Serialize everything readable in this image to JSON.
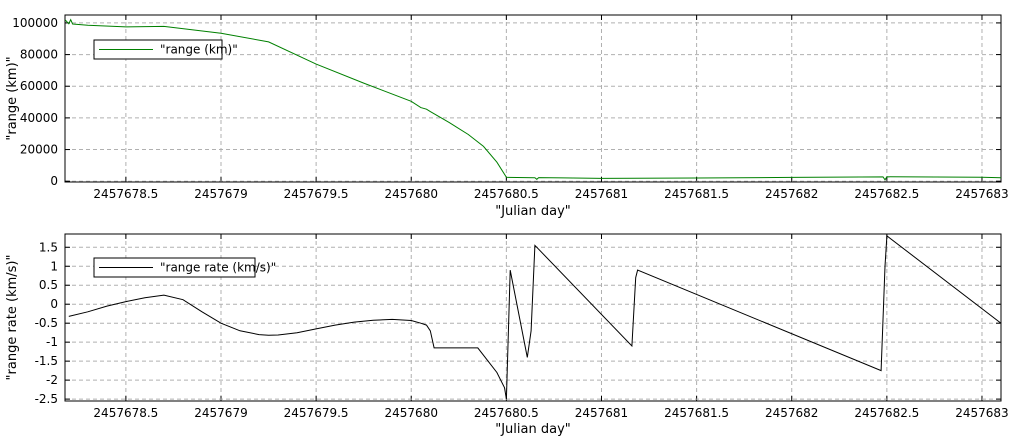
{
  "chart_data": [
    {
      "type": "line",
      "title": "",
      "xlabel": "\"Julian day\"",
      "ylabel": "\"range (km)\"",
      "xlim": [
        2457678.18,
        2457683.1
      ],
      "ylim": [
        -500,
        105000
      ],
      "grid": true,
      "legend_position": "top-left",
      "x_ticks": [
        "2457678.5",
        "2457679",
        "2457679.5",
        "2457680",
        "2457680.5",
        "2457681",
        "2457681.5",
        "2457682",
        "2457682.5",
        "2457683"
      ],
      "y_ticks": [
        "0",
        "20000",
        "40000",
        "60000",
        "80000",
        "100000"
      ],
      "series": [
        {
          "name": "\"range (km)\"",
          "color": "#008000",
          "x": [
            2457678.18,
            2457678.2,
            2457678.21,
            2457678.22,
            2457678.3,
            2457678.5,
            2457678.7,
            2457679.0,
            2457679.25,
            2457679.5,
            2457679.75,
            2457680.0,
            2457680.05,
            2457680.08,
            2457680.1,
            2457680.2,
            2457680.3,
            2457680.38,
            2457680.45,
            2457680.5,
            2457680.65,
            2457680.66,
            2457680.67,
            2457680.8,
            2457681.0,
            2457681.5,
            2457682.0,
            2457682.48,
            2457682.49,
            2457682.5,
            2457683.0,
            2457683.1
          ],
          "y": [
            102000,
            99500,
            102000,
            99300,
            98500,
            97500,
            97800,
            93500,
            88000,
            74000,
            62000,
            50500,
            46500,
            45500,
            44000,
            37000,
            29500,
            22000,
            12000,
            2500,
            2200,
            1200,
            2300,
            2100,
            1800,
            2000,
            2400,
            2700,
            900,
            2800,
            2500,
            2200
          ]
        }
      ]
    },
    {
      "type": "line",
      "title": "",
      "xlabel": "\"Julian day\"",
      "ylabel": "\"range rate (km/s)\"",
      "xlim": [
        2457678.18,
        2457683.1
      ],
      "ylim": [
        -2.55,
        1.85
      ],
      "grid": true,
      "legend_position": "top-left",
      "x_ticks": [
        "2457678.5",
        "2457679",
        "2457679.5",
        "2457680",
        "2457680.5",
        "2457681",
        "2457681.5",
        "2457682",
        "2457682.5",
        "2457683"
      ],
      "y_ticks": [
        "-2.5",
        "-2",
        "-1.5",
        "-1",
        "-0.5",
        "0",
        "0.5",
        "1",
        "1.5"
      ],
      "series": [
        {
          "name": "\"range rate (km/s)\"",
          "color": "#000000",
          "x": [
            2457678.2,
            2457678.3,
            2457678.4,
            2457678.5,
            2457678.6,
            2457678.7,
            2457678.8,
            2457678.9,
            2457679.0,
            2457679.1,
            2457679.2,
            2457679.25,
            2457679.3,
            2457679.4,
            2457679.5,
            2457679.6,
            2457679.7,
            2457679.8,
            2457679.9,
            2457680.0,
            2457680.05,
            2457680.08,
            2457680.1,
            2457680.12,
            2457680.35,
            2457680.45,
            2457680.49,
            2457680.5,
            2457680.52,
            2457680.61,
            2457680.63,
            2457680.65,
            2457680.66,
            2457681.16,
            2457681.18,
            2457681.19,
            2457682.47,
            2457682.49,
            2457682.5,
            2457683.1
          ],
          "y": [
            -0.32,
            -0.2,
            -0.05,
            0.07,
            0.17,
            0.24,
            0.12,
            -0.2,
            -0.5,
            -0.7,
            -0.8,
            -0.82,
            -0.81,
            -0.75,
            -0.65,
            -0.55,
            -0.47,
            -0.42,
            -0.4,
            -0.43,
            -0.5,
            -0.55,
            -0.7,
            -1.15,
            -1.15,
            -1.8,
            -2.2,
            -2.5,
            0.9,
            -1.4,
            -0.7,
            1.55,
            1.5,
            -1.1,
            0.7,
            0.9,
            -1.75,
            1.0,
            1.8,
            -0.5
          ]
        }
      ]
    }
  ]
}
